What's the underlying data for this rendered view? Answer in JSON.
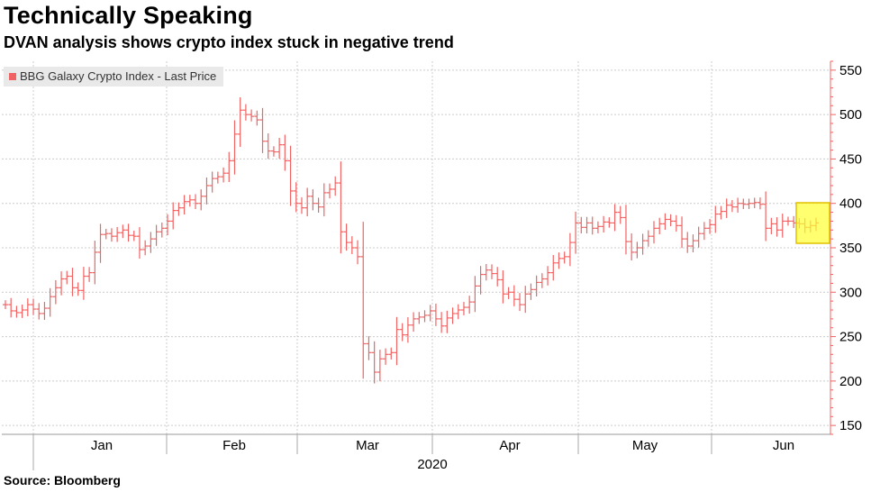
{
  "title": "Technically Speaking",
  "subtitle": "DVAN analysis shows crypto index stuck in negative trend",
  "source": "Source: Bloomberg",
  "colors": {
    "series": "#f06363",
    "grid": "#cccccc",
    "highlight": "#ffff33",
    "highlight_border": "#e0c000"
  },
  "chart_data": {
    "type": "line",
    "series_style": "ohlc-bars",
    "legend_position": "top-left",
    "grid": true,
    "ylim": [
      140,
      560
    ],
    "yticks": [
      150,
      200,
      250,
      300,
      350,
      400,
      450,
      500,
      550
    ],
    "x_tick_labels": [
      "Jan",
      "Feb",
      "Mar",
      "Apr",
      "May",
      "Jun"
    ],
    "x_year_label": "2020",
    "series": [
      {
        "name": "BBG Galaxy Crypto Index - Last Price",
        "values": [
          286,
          279,
          277,
          280,
          286,
          281,
          276,
          282,
          295,
          305,
          315,
          318,
          305,
          302,
          318,
          322,
          345,
          365,
          366,
          363,
          367,
          370,
          364,
          363,
          348,
          352,
          360,
          368,
          372,
          380,
          392,
          395,
          402,
          404,
          400,
          408,
          420,
          428,
          430,
          434,
          448,
          478,
          505,
          500,
          498,
          494,
          470,
          459,
          458,
          466,
          448,
          414,
          400,
          395,
          408,
          400,
          396,
          412,
          416,
          423,
          368,
          356,
          350,
          340,
          242,
          232,
          210,
          225,
          230,
          232,
          258,
          252,
          263,
          270,
          272,
          274,
          279,
          270,
          262,
          271,
          276,
          280,
          283,
          289,
          307,
          320,
          325,
          321,
          314,
          298,
          300,
          292,
          286,
          298,
          303,
          311,
          315,
          322,
          333,
          338,
          340,
          356,
          378,
          373,
          378,
          372,
          374,
          379,
          378,
          390,
          384,
          357,
          345,
          350,
          358,
          363,
          372,
          377,
          382,
          380,
          375,
          360,
          352,
          358,
          366,
          372,
          376,
          388,
          391,
          398,
          396,
          400,
          399,
          400,
          401,
          399,
          372,
          377,
          370,
          380,
          380,
          378,
          377,
          373,
          375,
          378
        ]
      }
    ]
  }
}
